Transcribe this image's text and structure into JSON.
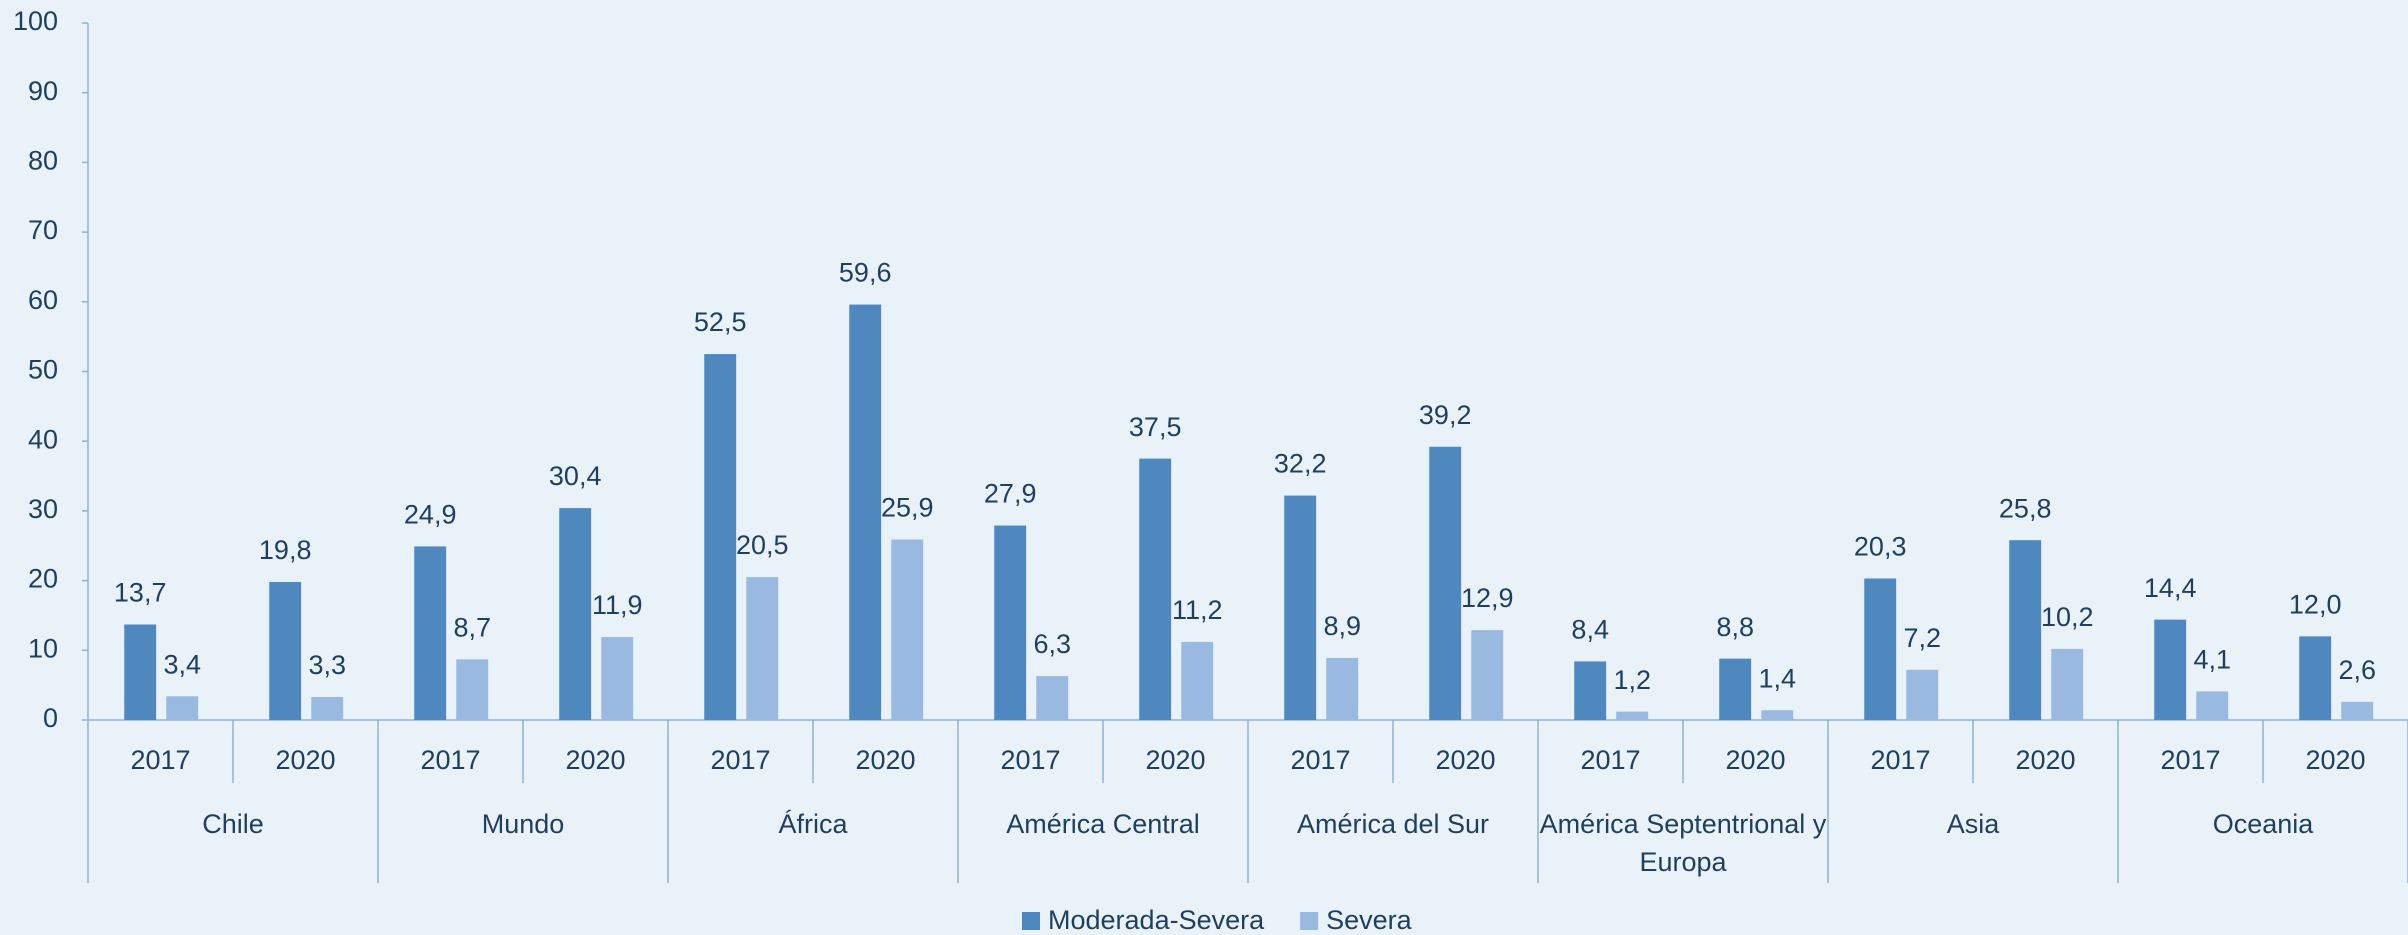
{
  "chart_data": {
    "type": "bar",
    "categories": [
      "2017",
      "2020",
      "2017",
      "2020",
      "2017",
      "2020",
      "2017",
      "2020",
      "2017",
      "2020",
      "2017",
      "2020",
      "2017",
      "2020",
      "2017",
      "2020"
    ],
    "groups": [
      "Chile",
      "Mundo",
      "África",
      "América Central",
      "América del Sur",
      "América Septentrional y Europa",
      "Asia",
      "Oceania"
    ],
    "series": [
      {
        "name": "Moderada-Severa",
        "color": "#4f88bf",
        "values": [
          13.7,
          19.8,
          24.9,
          30.4,
          52.5,
          59.6,
          27.9,
          37.5,
          32.2,
          39.2,
          8.4,
          8.8,
          20.3,
          25.8,
          14.4,
          12.0
        ],
        "value_labels": [
          "13,7",
          "19,8",
          "24,9",
          "30,4",
          "52,5",
          "59,6",
          "27,9",
          "37,5",
          "32,2",
          "39,2",
          "8,4",
          "8,8",
          "20,3",
          "25,8",
          "14,4",
          "12,0"
        ]
      },
      {
        "name": "Severa",
        "color": "#9ab9e0",
        "values": [
          3.4,
          3.3,
          8.7,
          11.9,
          20.5,
          25.9,
          6.3,
          11.2,
          8.9,
          12.9,
          1.2,
          1.4,
          7.2,
          10.2,
          4.1,
          2.6
        ],
        "value_labels": [
          "3,4",
          "3,3",
          "8,7",
          "11,9",
          "20,5",
          "25,9",
          "6,3",
          "11,2",
          "8,9",
          "12,9",
          "1,2",
          "1,4",
          "7,2",
          "10,2",
          "4,1",
          "2,6"
        ]
      }
    ],
    "ylim": [
      0,
      100
    ],
    "yticks": [
      0,
      10,
      20,
      30,
      40,
      50,
      60,
      70,
      80,
      90,
      100
    ],
    "grid": false,
    "legend": "bottom"
  }
}
